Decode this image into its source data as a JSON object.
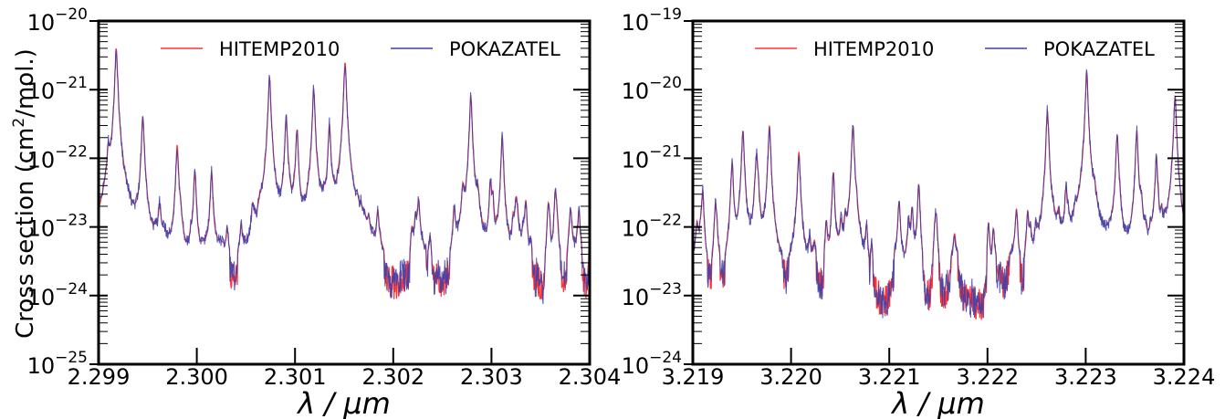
{
  "figure": {
    "ylabel_prefix": "Cross section (cm",
    "ylabel_sup": "2",
    "ylabel_suffix": "/mol.)"
  },
  "chart_data": [
    {
      "type": "line",
      "xlabel": "λ / μm",
      "ylabel": "Cross section (cm2/mol.)",
      "yscale": "log",
      "xlim": [
        2.299,
        2.304
      ],
      "ylim": [
        1e-25,
        1e-20
      ],
      "xticks": [
        "2.299",
        "2.300",
        "2.301",
        "2.302",
        "2.303",
        "2.304"
      ],
      "yticks": [
        -25,
        -24,
        -23,
        -22,
        -21,
        -20
      ],
      "legend_position": "top",
      "series": [
        {
          "name": "HITEMP2010",
          "color": "#ff3333"
        },
        {
          "name": "POKAZATEL",
          "color": "#3f3fa8"
        }
      ],
      "peaks": [
        [
          2.2991,
          1e-22
        ],
        [
          2.29918,
          4e-21
        ],
        [
          2.29945,
          4e-22
        ],
        [
          2.2998,
          1.5e-22
        ],
        [
          2.29998,
          6e-23
        ],
        [
          2.30015,
          6e-23
        ],
        [
          2.30031,
          6e-24
        ],
        [
          2.30058,
          5e-24
        ],
        [
          2.30074,
          1.5e-21
        ],
        [
          2.30091,
          4e-22
        ],
        [
          2.30102,
          2.5e-22
        ],
        [
          2.30119,
          1e-21
        ],
        [
          2.30135,
          3e-22
        ],
        [
          2.30151,
          2.5e-21
        ],
        [
          2.30175,
          6e-24
        ],
        [
          2.30219,
          6e-24
        ],
        [
          2.30262,
          1.5e-23
        ],
        [
          2.30279,
          8e-22
        ],
        [
          2.30299,
          4e-23
        ],
        [
          2.30311,
          2e-22
        ],
        [
          2.30335,
          2e-23
        ],
        [
          2.30365,
          3e-23
        ],
        [
          2.30389,
          7e-24
        ]
      ]
    },
    {
      "type": "line",
      "xlabel": "λ / μm",
      "ylabel": "",
      "yscale": "log",
      "xlim": [
        3.219,
        3.224
      ],
      "ylim": [
        1e-24,
        1e-19
      ],
      "xticks": [
        "3.219",
        "3.220",
        "3.221",
        "3.222",
        "3.223",
        "3.224"
      ],
      "yticks": [
        -24,
        -23,
        -22,
        -21,
        -20,
        -19
      ],
      "legend_position": "top",
      "series": [
        {
          "name": "HITEMP2010",
          "color": "#ff3333"
        },
        {
          "name": "POKAZATEL",
          "color": "#3f3fa8"
        }
      ],
      "peaks": [
        [
          3.2191,
          3e-22
        ],
        [
          3.2194,
          8e-22
        ],
        [
          3.21951,
          2.5e-21
        ],
        [
          3.21965,
          1e-21
        ],
        [
          3.21978,
          3e-21
        ],
        [
          3.22008,
          1.2e-21
        ],
        [
          3.22043,
          6e-22
        ],
        [
          3.22063,
          3e-21
        ],
        [
          3.2211,
          2e-22
        ],
        [
          3.2213,
          4e-22
        ],
        [
          3.22148,
          1e-22
        ],
        [
          3.22201,
          1e-22
        ],
        [
          3.22261,
          5e-21
        ],
        [
          3.2228,
          3e-22
        ],
        [
          3.22301,
          1.7e-20
        ],
        [
          3.22332,
          2e-21
        ],
        [
          3.22352,
          2.5e-21
        ],
        [
          3.22372,
          1e-21
        ],
        [
          3.22391,
          8e-21
        ]
      ]
    }
  ]
}
